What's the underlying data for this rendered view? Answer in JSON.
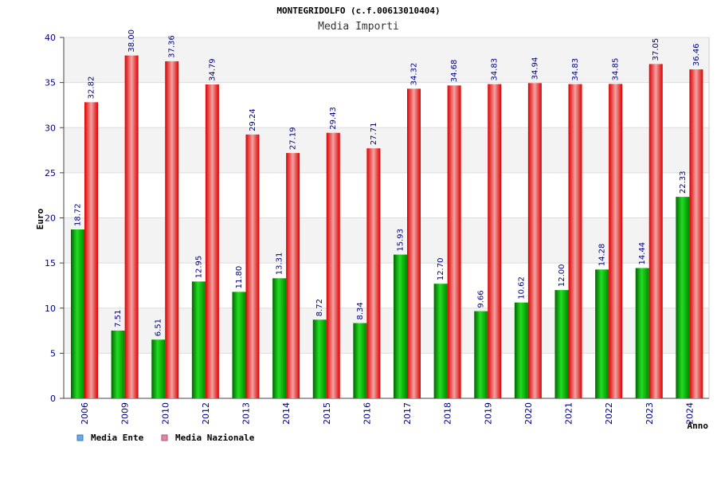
{
  "chart_data": {
    "type": "bar",
    "title": "MONTEGRIDOLFO (c.f.00613010404)",
    "subtitle": "Media Importi",
    "ylabel": "Euro",
    "xlabel": "Anno",
    "ylim": [
      0,
      40
    ],
    "yticks": [
      0,
      5,
      10,
      15,
      20,
      25,
      30,
      35,
      40
    ],
    "grid": true,
    "legend_position": "bottom-left",
    "categories": [
      "2006",
      "2009",
      "2010",
      "2012",
      "2013",
      "2014",
      "2015",
      "2016",
      "2017",
      "2018",
      "2019",
      "2020",
      "2021",
      "2022",
      "2023",
      "2024"
    ],
    "series": [
      {
        "name": "Media Ente",
        "color": "#00aa00",
        "legend_color": "#66aaee",
        "values": [
          18.72,
          7.51,
          6.51,
          12.95,
          11.8,
          13.31,
          8.72,
          8.34,
          15.93,
          12.7,
          9.66,
          10.62,
          12.0,
          14.28,
          14.44,
          22.33
        ],
        "labels": [
          "18.72",
          "7.51",
          "6.51",
          "12.95",
          "11.80",
          "13.31",
          "8.72",
          "8.34",
          "15.93",
          "12.70",
          "9.66",
          "10.62",
          "12.00",
          "14.28",
          "14.44",
          "22.33"
        ]
      },
      {
        "name": "Media Nazionale",
        "color": "#ee1111",
        "legend_color": "#dd88aa",
        "values": [
          32.82,
          38.0,
          37.36,
          34.79,
          29.24,
          27.19,
          29.43,
          27.71,
          34.32,
          34.68,
          34.83,
          34.94,
          34.83,
          34.85,
          37.05,
          36.46
        ],
        "labels": [
          "32.82",
          "38.00",
          "37.36",
          "34.79",
          "29.24",
          "27.19",
          "29.43",
          "27.71",
          "34.32",
          "34.68",
          "34.83",
          "34.94",
          "34.83",
          "34.85",
          "37.05",
          "36.46"
        ]
      }
    ]
  }
}
